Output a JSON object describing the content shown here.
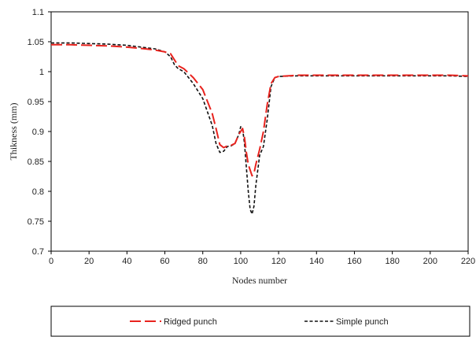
{
  "chart_data": {
    "type": "line",
    "xlabel": "Nodes number",
    "ylabel": "Thikness (mm)",
    "xlim": [
      0,
      220
    ],
    "ylim": [
      0.7,
      1.1
    ],
    "xticks": [
      0,
      20,
      40,
      60,
      80,
      100,
      120,
      140,
      160,
      180,
      200,
      220
    ],
    "yticks": [
      0.7,
      0.75,
      0.8,
      0.85,
      0.9,
      0.95,
      1,
      1.05,
      1.1
    ],
    "xtick_labels": [
      "0",
      "20",
      "40",
      "60",
      "80",
      "100",
      "120",
      "140",
      "160",
      "180",
      "200",
      "220"
    ],
    "ytick_labels": [
      "0.7",
      "0.75",
      "0.8",
      "0.85",
      "0.9",
      "0.95",
      "1",
      "1.05",
      "1.1"
    ],
    "grid": false,
    "legend_position": "bottom",
    "series": [
      {
        "name": "Ridged punch",
        "color": "#e8231e",
        "style": "long-dash",
        "x": [
          0,
          10,
          20,
          30,
          40,
          50,
          55,
          60,
          63,
          65,
          67,
          70,
          75,
          80,
          85,
          87,
          89,
          91,
          93,
          95,
          97,
          99,
          101,
          102,
          103,
          104,
          106,
          107,
          108,
          110,
          112,
          114,
          116,
          118,
          120,
          130,
          150,
          170,
          190,
          210,
          220
        ],
        "y": [
          1.045,
          1.045,
          1.044,
          1.043,
          1.041,
          1.038,
          1.036,
          1.033,
          1.03,
          1.02,
          1.01,
          1.005,
          0.99,
          0.97,
          0.93,
          0.905,
          0.878,
          0.873,
          0.876,
          0.877,
          0.88,
          0.895,
          0.905,
          0.89,
          0.865,
          0.845,
          0.826,
          0.83,
          0.845,
          0.87,
          0.9,
          0.945,
          0.98,
          0.99,
          0.992,
          0.994,
          0.994,
          0.994,
          0.994,
          0.994,
          0.993
        ]
      },
      {
        "name": "Simple punch",
        "color": "#111111",
        "style": "short-dash",
        "x": [
          0,
          10,
          20,
          30,
          40,
          50,
          55,
          60,
          63,
          65,
          67,
          70,
          75,
          80,
          85,
          87,
          89,
          91,
          93,
          95,
          97,
          99,
          100,
          101,
          102,
          103,
          104,
          105,
          106,
          107,
          108,
          110,
          112,
          114,
          116,
          118,
          120,
          130,
          150,
          170,
          190,
          210,
          220
        ],
        "y": [
          1.048,
          1.048,
          1.047,
          1.046,
          1.044,
          1.04,
          1.038,
          1.033,
          1.025,
          1.012,
          1.005,
          1.0,
          0.98,
          0.955,
          0.91,
          0.88,
          0.865,
          0.867,
          0.875,
          0.876,
          0.88,
          0.895,
          0.908,
          0.905,
          0.88,
          0.84,
          0.8,
          0.77,
          0.762,
          0.775,
          0.81,
          0.86,
          0.875,
          0.92,
          0.975,
          0.99,
          0.992,
          0.993,
          0.993,
          0.993,
          0.993,
          0.993,
          0.992
        ]
      }
    ]
  }
}
